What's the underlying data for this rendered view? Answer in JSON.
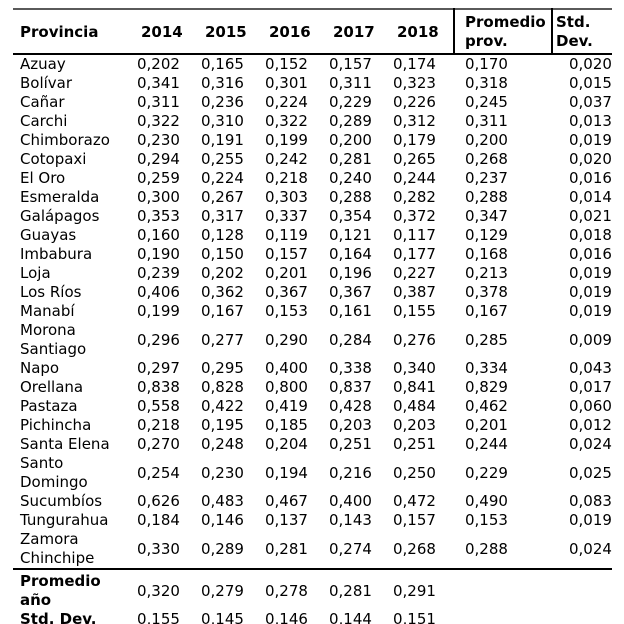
{
  "table": {
    "header": {
      "provincia": "Provincia",
      "years": [
        "2014",
        "2015",
        "2016",
        "2017",
        "2018"
      ],
      "promedio": "Promedio\nprov.",
      "stddev": "Std.\nDev."
    },
    "rows": [
      [
        "Azuay",
        "0,202",
        "0,165",
        "0,152",
        "0,157",
        "0,174",
        "0,170",
        "0,020"
      ],
      [
        "Bolívar",
        "0,341",
        "0,316",
        "0,301",
        "0,311",
        "0,323",
        "0,318",
        "0,015"
      ],
      [
        "Cañar",
        "0,311",
        "0,236",
        "0,224",
        "0,229",
        "0,226",
        "0,245",
        "0,037"
      ],
      [
        "Carchi",
        "0,322",
        "0,310",
        "0,322",
        "0,289",
        "0,312",
        "0,311",
        "0,013"
      ],
      [
        "Chimborazo",
        "0,230",
        "0,191",
        "0,199",
        "0,200",
        "0,179",
        "0,200",
        "0,019"
      ],
      [
        "Cotopaxi",
        "0,294",
        "0,255",
        "0,242",
        "0,281",
        "0,265",
        "0,268",
        "0,020"
      ],
      [
        "El Oro",
        "0,259",
        "0,224",
        "0,218",
        "0,240",
        "0,244",
        "0,237",
        "0,016"
      ],
      [
        "Esmeralda",
        "0,300",
        "0,267",
        "0,303",
        "0,288",
        "0,282",
        "0,288",
        "0,014"
      ],
      [
        "Galápagos",
        "0,353",
        "0,317",
        "0,337",
        "0,354",
        "0,372",
        "0,347",
        "0,021"
      ],
      [
        "Guayas",
        "0,160",
        "0,128",
        "0,119",
        "0,121",
        "0,117",
        "0,129",
        "0,018"
      ],
      [
        "Imbabura",
        "0,190",
        "0,150",
        "0,157",
        "0,164",
        "0,177",
        "0,168",
        "0,016"
      ],
      [
        "Loja",
        "0,239",
        "0,202",
        "0,201",
        "0,196",
        "0,227",
        "0,213",
        "0,019"
      ],
      [
        "Los Ríos",
        "0,406",
        "0,362",
        "0,367",
        "0,367",
        "0,387",
        "0,378",
        "0,019"
      ],
      [
        "Manabí",
        "0,199",
        "0,167",
        "0,153",
        "0,161",
        "0,155",
        "0,167",
        "0,019"
      ],
      [
        "Morona\nSantiago",
        "0,296",
        "0,277",
        "0,290",
        "0,284",
        "0,276",
        "0,285",
        "0,009"
      ],
      [
        "Napo",
        "0,297",
        "0,295",
        "0,400",
        "0,338",
        "0,340",
        "0,334",
        "0,043"
      ],
      [
        "Orellana",
        "0,838",
        "0,828",
        "0,800",
        "0,837",
        "0,841",
        "0,829",
        "0,017"
      ],
      [
        "Pastaza",
        "0,558",
        "0,422",
        "0,419",
        "0,428",
        "0,484",
        "0,462",
        "0,060"
      ],
      [
        "Pichincha",
        "0,218",
        "0,195",
        "0,185",
        "0,203",
        "0,203",
        "0,201",
        "0,012"
      ],
      [
        "Santa Elena",
        "0,270",
        "0,248",
        "0,204",
        "0,251",
        "0,251",
        "0,244",
        "0,024"
      ],
      [
        "Santo\nDomingo",
        "0,254",
        "0,230",
        "0,194",
        "0,216",
        "0,250",
        "0,229",
        "0,025"
      ],
      [
        "Sucumbíos",
        "0,626",
        "0,483",
        "0,467",
        "0,400",
        "0,472",
        "0,490",
        "0,083"
      ],
      [
        "Tungurahua",
        "0,184",
        "0,146",
        "0,137",
        "0,143",
        "0,157",
        "0,153",
        "0,019"
      ],
      [
        "Zamora\nChinchipe",
        "0,330",
        "0,289",
        "0,281",
        "0,274",
        "0,268",
        "0,288",
        "0,024"
      ]
    ],
    "footer": [
      [
        "Promedio\naño",
        "0,320",
        "0,279",
        "0,278",
        "0,281",
        "0,291",
        "",
        ""
      ],
      [
        "Std. Dev.",
        "0,155",
        "0,145",
        "0,146",
        "0,144",
        "0,151",
        "",
        ""
      ]
    ]
  }
}
